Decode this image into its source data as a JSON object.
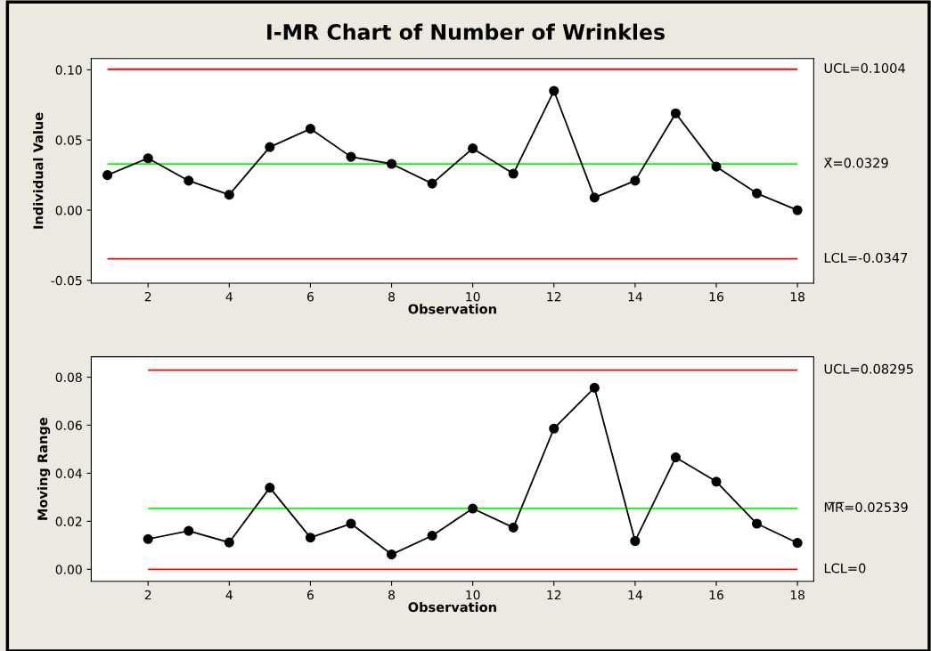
{
  "chart_data": [
    {
      "type": "line",
      "title": "I-MR Chart of Number of Wrinkles",
      "xlabel": "Observation",
      "ylabel": "Individual Value",
      "x": [
        1,
        2,
        3,
        4,
        5,
        6,
        7,
        8,
        9,
        10,
        11,
        12,
        13,
        14,
        15,
        16,
        17,
        18
      ],
      "series": [
        {
          "color": "#000000",
          "values": [
            0.025,
            0.037,
            0.021,
            0.011,
            0.045,
            0.058,
            0.038,
            0.033,
            0.019,
            0.044,
            0.026,
            0.085,
            0.009,
            0.021,
            0.069,
            0.031,
            0.012,
            0.0
          ]
        }
      ],
      "marker": "circle",
      "grid": false,
      "xlim": [
        0.6,
        18.4
      ],
      "xticks": [
        2,
        4,
        6,
        8,
        10,
        12,
        14,
        16,
        18
      ],
      "ylim": [
        -0.052,
        0.108
      ],
      "yticks": [
        {
          "value": -0.05,
          "label": "-0.05"
        },
        {
          "value": 0,
          "label": "0.00"
        },
        {
          "value": 0.05,
          "label": "0.05"
        },
        {
          "value": 0.1,
          "label": "0.10"
        }
      ],
      "ref_lines": [
        {
          "axis": "y",
          "value": 0.1004,
          "label": "UCL=0.1004",
          "color": "#ff0000"
        },
        {
          "axis": "y",
          "value": 0.0329,
          "label": "X̄=0.0329",
          "color": "#00ff00"
        },
        {
          "axis": "y",
          "value": -0.0347,
          "label": "LCL=-0.0347",
          "color": "#ff0000"
        }
      ]
    },
    {
      "type": "line",
      "xlabel": "Observation",
      "ylabel": "Moving Range",
      "x": [
        2,
        3,
        4,
        5,
        6,
        7,
        8,
        9,
        10,
        11,
        12,
        13,
        14,
        15,
        16,
        17,
        18
      ],
      "series": [
        {
          "color": "#000000",
          "values": [
            0.0126,
            0.016,
            0.0112,
            0.034,
            0.0132,
            0.019,
            0.0062,
            0.014,
            0.0253,
            0.0174,
            0.0586,
            0.0756,
            0.0118,
            0.0466,
            0.0365,
            0.019,
            0.011
          ]
        }
      ],
      "marker": "circle",
      "grid": false,
      "xlim": [
        0.6,
        18.4
      ],
      "xticks": [
        2,
        4,
        6,
        8,
        10,
        12,
        14,
        16,
        18
      ],
      "ylim": [
        -0.005,
        0.0885
      ],
      "yticks": [
        {
          "value": 0,
          "label": "0.00"
        },
        {
          "value": 0.02,
          "label": "0.02"
        },
        {
          "value": 0.04,
          "label": "0.04"
        },
        {
          "value": 0.06,
          "label": "0.06"
        },
        {
          "value": 0.08,
          "label": "0.08"
        }
      ],
      "ref_lines": [
        {
          "axis": "y",
          "value": 0.08295,
          "label": "UCL=0.08295",
          "color": "#ff0000"
        },
        {
          "axis": "y",
          "value": 0.02539,
          "label": "M̅R̅=0.02539",
          "color": "#00ff00"
        },
        {
          "axis": "y",
          "value": 0,
          "label": "LCL=0",
          "color": "#ff0000"
        }
      ]
    }
  ]
}
